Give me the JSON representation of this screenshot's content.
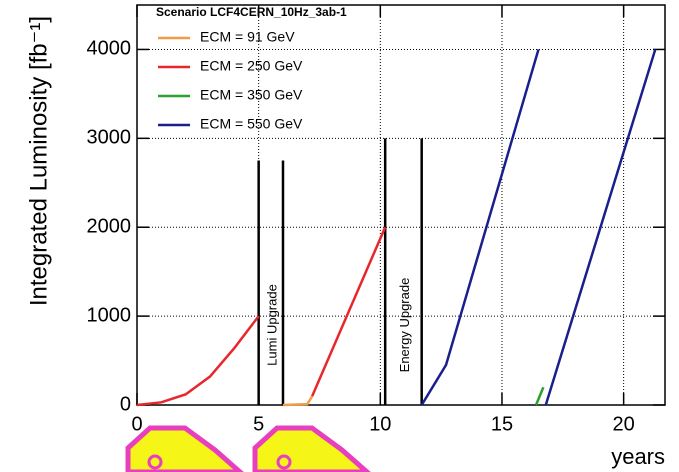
{
  "chart_data": {
    "type": "line",
    "legend_title": "Scenario LCF4CERN_10Hz_3ab-1",
    "x_label": "years",
    "y_label": "Integrated Luminosity  [fb⁻¹]",
    "xlim": [
      0,
      21.7
    ],
    "ylim": [
      0,
      4500
    ],
    "xticks": [
      0,
      5,
      10,
      15,
      20
    ],
    "yticks": [
      0,
      1000,
      2000,
      3000,
      4000
    ],
    "grid": true,
    "legend": "upper left",
    "series": [
      {
        "name": "ECM = 91 GeV",
        "color": "#f39c45",
        "x": [
          6.0,
          7.0,
          7.2
        ],
        "values": [
          0,
          10,
          100
        ]
      },
      {
        "name": "ECM = 250 GeV",
        "color": "#e8262b",
        "x": [
          0,
          1,
          2,
          3,
          4,
          5,
          null,
          7.2,
          10.2
        ],
        "values": [
          0,
          30,
          120,
          320,
          640,
          1000,
          null,
          100,
          2000
        ]
      },
      {
        "name": "ECM = 350 GeV",
        "color": "#2ca02c",
        "x": [
          16.4,
          16.7
        ],
        "values": [
          0,
          200
        ]
      },
      {
        "name": "ECM = 550 GeV",
        "color": "#1a1f8c",
        "x": [
          11.7,
          12.7,
          16.5,
          null,
          16.8,
          21.3
        ],
        "values": [
          0,
          450,
          4000,
          null,
          0,
          4000
        ]
      }
    ],
    "annotations": [
      {
        "text": "Lumi Upgrade",
        "x": [
          5.0,
          6.0
        ],
        "top": 2750
      },
      {
        "text": "Energy Upgrade",
        "x": [
          10.2,
          11.7
        ],
        "top": 3000
      }
    ]
  }
}
